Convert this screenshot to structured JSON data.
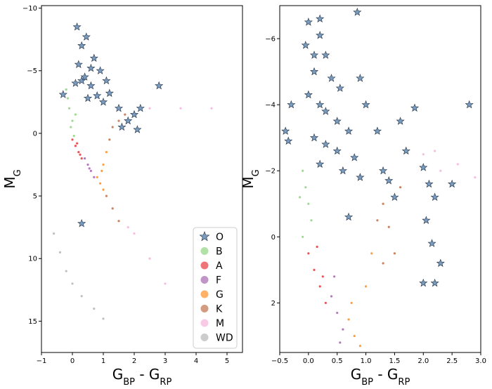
{
  "chart_data": [
    {
      "type": "scatter",
      "xlabel": "G_BP - G_RP",
      "ylabel": "M_G",
      "xlim": [
        -1,
        5.5
      ],
      "ylim": [
        17.5,
        -10.2
      ],
      "x_ticks": [
        -1,
        0,
        1,
        2,
        3,
        4,
        5
      ],
      "y_ticks": [
        -10,
        -5,
        0,
        5,
        10,
        15
      ],
      "x_tick_labels": [
        "−1",
        "0",
        "1",
        "2",
        "3",
        "4",
        "5"
      ],
      "y_tick_labels": [
        "−10",
        "−5",
        "0",
        "5",
        "10",
        "15"
      ],
      "legend_position": "bottom-right",
      "series": [
        {
          "name": "O",
          "marker": "star",
          "color": "#4c7aa8",
          "points": [
            [
              0.2,
              -5.5
            ],
            [
              0.4,
              -4.5
            ],
            [
              0.6,
              -3.8
            ],
            [
              0.3,
              -4.2
            ],
            [
              0.8,
              -3.0
            ],
            [
              1.0,
              -2.5
            ],
            [
              1.2,
              -3.2
            ],
            [
              0.5,
              -2.8
            ],
            [
              0.1,
              -4.0
            ],
            [
              1.5,
              -2.0
            ],
            [
              1.8,
              -1.0
            ],
            [
              2.0,
              -1.5
            ],
            [
              2.2,
              -2.0
            ],
            [
              0.7,
              -6.0
            ],
            [
              0.9,
              -5.0
            ],
            [
              2.8,
              -3.8
            ],
            [
              0.3,
              -7.0
            ],
            [
              0.15,
              -8.5
            ],
            [
              0.45,
              -7.7
            ],
            [
              1.6,
              -0.5
            ],
            [
              2.1,
              -0.3
            ],
            [
              0.3,
              7.2
            ],
            [
              -0.3,
              -3.1
            ],
            [
              1.1,
              -4.2
            ],
            [
              0.6,
              -5.2
            ]
          ]
        },
        {
          "name": "B",
          "marker": "circle",
          "color": "#7ccf6a",
          "points": [
            [
              -0.2,
              -3.5
            ],
            [
              -0.1,
              -2.0
            ],
            [
              0.0,
              -1.0
            ],
            [
              -0.05,
              -0.5
            ],
            [
              0.05,
              0.2
            ],
            [
              -0.15,
              -2.8
            ],
            [
              0.1,
              -1.5
            ]
          ]
        },
        {
          "name": "A",
          "marker": "circle",
          "color": "#e41a1c",
          "points": [
            [
              0.0,
              0.5
            ],
            [
              0.1,
              1.0
            ],
            [
              0.2,
              1.5
            ],
            [
              0.3,
              2.0
            ],
            [
              0.15,
              0.8
            ],
            [
              0.25,
              1.7
            ]
          ]
        },
        {
          "name": "F",
          "marker": "circle",
          "color": "#984ea3",
          "points": [
            [
              0.4,
              2.0
            ],
            [
              0.5,
              2.5
            ],
            [
              0.6,
              3.0
            ],
            [
              0.7,
              3.5
            ],
            [
              0.55,
              2.8
            ]
          ]
        },
        {
          "name": "G",
          "marker": "circle",
          "color": "#ff7f00",
          "points": [
            [
              0.8,
              3.5
            ],
            [
              0.9,
              4.0
            ],
            [
              1.0,
              4.5
            ],
            [
              1.0,
              2.5
            ],
            [
              1.1,
              1.5
            ],
            [
              0.95,
              3.0
            ]
          ]
        },
        {
          "name": "K",
          "marker": "circle",
          "color": "#b5592c",
          "points": [
            [
              1.1,
              5.0
            ],
            [
              1.3,
              6.0
            ],
            [
              1.5,
              7.0
            ],
            [
              1.2,
              0.5
            ],
            [
              1.3,
              -0.5
            ],
            [
              1.5,
              -1.0
            ],
            [
              1.7,
              -1.5
            ]
          ]
        },
        {
          "name": "M",
          "marker": "circle",
          "color": "#f4a6d6",
          "points": [
            [
              2.0,
              8.0
            ],
            [
              2.5,
              10.0
            ],
            [
              3.0,
              12.0
            ],
            [
              3.5,
              -2.0
            ],
            [
              4.5,
              -2.0
            ],
            [
              2.5,
              -2.0
            ],
            [
              1.8,
              7.5
            ]
          ]
        },
        {
          "name": "WD",
          "marker": "circle",
          "color": "#aaaaaa",
          "points": [
            [
              -0.6,
              8.0
            ],
            [
              -0.4,
              9.5
            ],
            [
              -0.2,
              11.0
            ],
            [
              0.0,
              12.0
            ],
            [
              0.3,
              13.0
            ],
            [
              0.7,
              14.0
            ],
            [
              1.0,
              14.8
            ]
          ]
        }
      ]
    },
    {
      "type": "scatter",
      "xlabel": "G_BP - G_RP",
      "ylabel": "M_G",
      "xlim": [
        -0.5,
        3.0
      ],
      "ylim": [
        3.5,
        -7.0
      ],
      "x_ticks": [
        -0.5,
        0.0,
        0.5,
        1.0,
        1.5,
        2.0,
        2.5,
        3.0
      ],
      "y_ticks": [
        -6,
        -4,
        -2,
        0,
        2
      ],
      "x_tick_labels": [
        "−0.5",
        "0.0",
        "0.5",
        "1.0",
        "1.5",
        "2.0",
        "2.5",
        "3.0"
      ],
      "y_tick_labels": [
        "−6",
        "−4",
        "−2",
        "0",
        "2"
      ],
      "series": [
        {
          "name": "O",
          "marker": "star",
          "color": "#4c7aa8",
          "points": [
            [
              0.0,
              -6.5
            ],
            [
              0.2,
              -6.6
            ],
            [
              0.85,
              -6.8
            ],
            [
              0.2,
              -6.1
            ],
            [
              -0.05,
              -5.8
            ],
            [
              0.1,
              -5.5
            ],
            [
              0.3,
              -5.5
            ],
            [
              0.1,
              -5.0
            ],
            [
              0.4,
              -4.8
            ],
            [
              0.55,
              -4.5
            ],
            [
              0.9,
              -4.8
            ],
            [
              0.0,
              -4.3
            ],
            [
              0.2,
              -4.0
            ],
            [
              0.3,
              -3.8
            ],
            [
              0.5,
              -3.5
            ],
            [
              0.7,
              -3.2
            ],
            [
              0.1,
              -3.0
            ],
            [
              0.3,
              -2.8
            ],
            [
              0.5,
              -2.6
            ],
            [
              0.8,
              -2.4
            ],
            [
              0.2,
              -2.2
            ],
            [
              0.6,
              -2.0
            ],
            [
              0.9,
              -1.8
            ],
            [
              1.2,
              -3.2
            ],
            [
              1.3,
              -2.0
            ],
            [
              1.5,
              -1.2
            ],
            [
              1.6,
              -3.5
            ],
            [
              1.85,
              -3.9
            ],
            [
              2.0,
              -2.1
            ],
            [
              2.1,
              -1.6
            ],
            [
              2.2,
              -1.2
            ],
            [
              2.05,
              -0.5
            ],
            [
              2.15,
              0.2
            ],
            [
              2.0,
              1.4
            ],
            [
              2.2,
              1.4
            ],
            [
              2.3,
              0.8
            ],
            [
              2.8,
              -4.0
            ],
            [
              2.5,
              -1.6
            ],
            [
              -0.4,
              -3.2
            ],
            [
              -0.35,
              -2.9
            ],
            [
              -0.3,
              -4.0
            ],
            [
              1.0,
              -4.0
            ],
            [
              1.4,
              -1.7
            ],
            [
              0.7,
              -0.6
            ],
            [
              1.7,
              -2.6
            ]
          ]
        },
        {
          "name": "B",
          "marker": "circle",
          "color": "#7ccf6a",
          "points": [
            [
              -0.1,
              -2.0
            ],
            [
              -0.05,
              -1.5
            ],
            [
              0.0,
              -1.0
            ],
            [
              -0.1,
              0.0
            ],
            [
              0.05,
              -0.5
            ],
            [
              -0.15,
              -1.2
            ]
          ]
        },
        {
          "name": "A",
          "marker": "circle",
          "color": "#e41a1c",
          "points": [
            [
              0.0,
              0.5
            ],
            [
              0.1,
              1.0
            ],
            [
              0.2,
              1.5
            ],
            [
              0.3,
              2.0
            ],
            [
              0.15,
              0.3
            ],
            [
              0.25,
              1.2
            ]
          ]
        },
        {
          "name": "F",
          "marker": "circle",
          "color": "#984ea3",
          "points": [
            [
              0.4,
              1.8
            ],
            [
              0.5,
              2.3
            ],
            [
              0.6,
              2.8
            ],
            [
              0.45,
              1.2
            ],
            [
              0.55,
              3.2
            ]
          ]
        },
        {
          "name": "G",
          "marker": "circle",
          "color": "#ff7f00",
          "points": [
            [
              0.7,
              2.5
            ],
            [
              0.8,
              3.0
            ],
            [
              0.75,
              2.0
            ],
            [
              1.0,
              1.5
            ],
            [
              1.1,
              0.5
            ],
            [
              0.9,
              3.3
            ]
          ]
        },
        {
          "name": "K",
          "marker": "circle",
          "color": "#b5592c",
          "points": [
            [
              1.2,
              -0.5
            ],
            [
              1.3,
              -1.0
            ],
            [
              1.4,
              -0.3
            ],
            [
              1.5,
              0.5
            ],
            [
              1.3,
              0.8
            ],
            [
              1.6,
              -1.5
            ]
          ]
        },
        {
          "name": "M",
          "marker": "circle",
          "color": "#f4a6d6",
          "points": [
            [
              2.0,
              -2.5
            ],
            [
              2.3,
              -2.0
            ],
            [
              2.6,
              -2.2
            ],
            [
              2.9,
              -1.8
            ],
            [
              2.2,
              -2.6
            ]
          ]
        }
      ]
    }
  ]
}
